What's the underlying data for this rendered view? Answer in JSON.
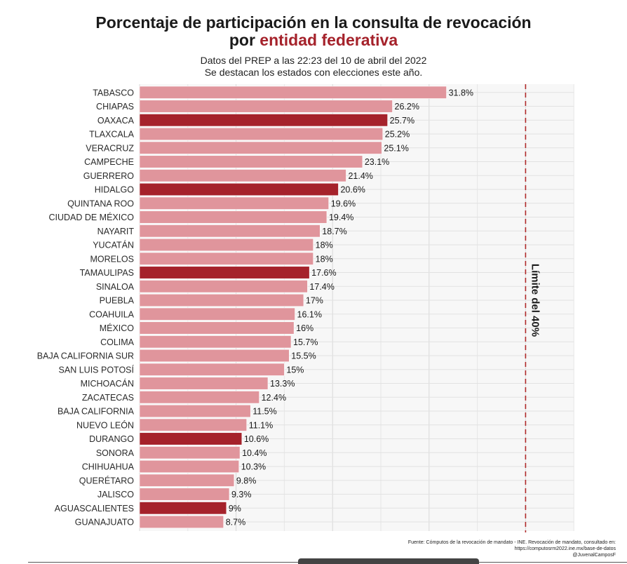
{
  "header": {
    "title_line1": "Porcentaje de participación en la consulta de revocación",
    "title_line2_prefix": "por ",
    "title_line2_accent": "entidad federativa",
    "subtitle_line1": "Datos del PREP a las 22:23 del 10 de abril del 2022",
    "subtitle_line2": "Se destacan los estados con elecciones este año."
  },
  "footer": {
    "source_line1": "Fuente: Cómputos de la revocación de mandato - INE. Revocación de mandato, consultado en:",
    "source_line2": "https://computosrm2022.ine.mx/base-de-datos",
    "source_line3": "@JuvenalCamposF"
  },
  "colors": {
    "highlight": "#a5222b",
    "normal": "#e0959c",
    "limit_line": "#b02a2a"
  },
  "chart_data": {
    "type": "bar",
    "orientation": "horizontal",
    "xlim": [
      0,
      45
    ],
    "grid": true,
    "categories": [
      "TABASCO",
      "CHIAPAS",
      "OAXACA",
      "TLAXCALA",
      "VERACRUZ",
      "CAMPECHE",
      "GUERRERO",
      "HIDALGO",
      "QUINTANA ROO",
      "CIUDAD DE MÉXICO",
      "NAYARIT",
      "YUCATÁN",
      "MORELOS",
      "TAMAULIPAS",
      "SINALOA",
      "PUEBLA",
      "COAHUILA",
      "MÉXICO",
      "COLIMA",
      "BAJA CALIFORNIA SUR",
      "SAN LUIS POTOSÍ",
      "MICHOACÁN",
      "ZACATECAS",
      "BAJA CALIFORNIA",
      "NUEVO LEÓN",
      "DURANGO",
      "SONORA",
      "CHIHUAHUA",
      "QUERÉTARO",
      "JALISCO",
      "AGUASCALIENTES",
      "GUANAJUATO"
    ],
    "values": [
      31.8,
      26.2,
      25.7,
      25.2,
      25.1,
      23.1,
      21.4,
      20.6,
      19.6,
      19.4,
      18.7,
      18,
      18,
      17.6,
      17.4,
      17,
      16.1,
      16,
      15.7,
      15.5,
      15,
      13.3,
      12.4,
      11.5,
      11.1,
      10.6,
      10.4,
      10.3,
      9.8,
      9.3,
      9,
      8.7
    ],
    "value_labels": [
      "31.8%",
      "26.2%",
      "25.7%",
      "25.2%",
      "25.1%",
      "23.1%",
      "21.4%",
      "20.6%",
      "19.6%",
      "19.4%",
      "18.7%",
      "18%",
      "18%",
      "17.6%",
      "17.4%",
      "17%",
      "16.1%",
      "16%",
      "15.7%",
      "15.5%",
      "15%",
      "13.3%",
      "12.4%",
      "11.5%",
      "11.1%",
      "10.6%",
      "10.4%",
      "10.3%",
      "9.8%",
      "9.3%",
      "9%",
      "8.7%"
    ],
    "highlighted": [
      false,
      false,
      true,
      false,
      false,
      false,
      false,
      true,
      false,
      false,
      false,
      false,
      false,
      true,
      false,
      false,
      false,
      false,
      false,
      false,
      false,
      false,
      false,
      false,
      false,
      true,
      false,
      false,
      false,
      false,
      true,
      false
    ],
    "reference_line": {
      "value": 40,
      "label": "Límite del 40%",
      "style": "dashed"
    }
  }
}
